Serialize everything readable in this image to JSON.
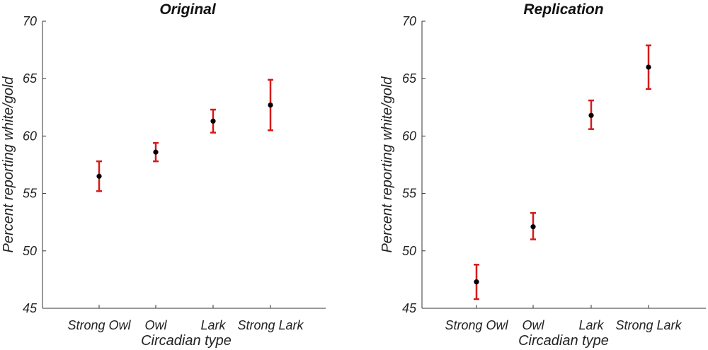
{
  "chart_data": [
    {
      "type": "scatter",
      "title": "Original",
      "xlabel": "Circadian type",
      "ylabel": "Percent reporting white/gold",
      "categories": [
        "Strong Owl",
        "Owl",
        "Lark",
        "Strong Lark"
      ],
      "y_ticks": [
        "45",
        "50",
        "55",
        "60",
        "65",
        "70"
      ],
      "ylim": [
        45,
        70
      ],
      "grid": false,
      "series": [
        {
          "values": [
            56.5,
            58.6,
            61.3,
            62.7
          ],
          "err_low": [
            55.2,
            57.8,
            60.3,
            60.5
          ],
          "err_high": [
            57.8,
            59.4,
            62.3,
            64.9
          ]
        }
      ],
      "point_color": "#000000",
      "error_color": "#d41a1a"
    },
    {
      "type": "scatter",
      "title": "Replication",
      "xlabel": "Circadian type",
      "ylabel": "Percent reporting white/gold",
      "categories": [
        "Strong Owl",
        "Owl",
        "Lark",
        "Strong Lark"
      ],
      "y_ticks": [
        "45",
        "50",
        "55",
        "60",
        "65",
        "70"
      ],
      "ylim": [
        45,
        70
      ],
      "grid": false,
      "series": [
        {
          "values": [
            47.3,
            52.1,
            61.8,
            66.0
          ],
          "err_low": [
            45.8,
            51.0,
            60.6,
            64.1
          ],
          "err_high": [
            48.8,
            53.3,
            63.1,
            67.9
          ]
        }
      ],
      "point_color": "#000000",
      "error_color": "#d41a1a"
    }
  ]
}
